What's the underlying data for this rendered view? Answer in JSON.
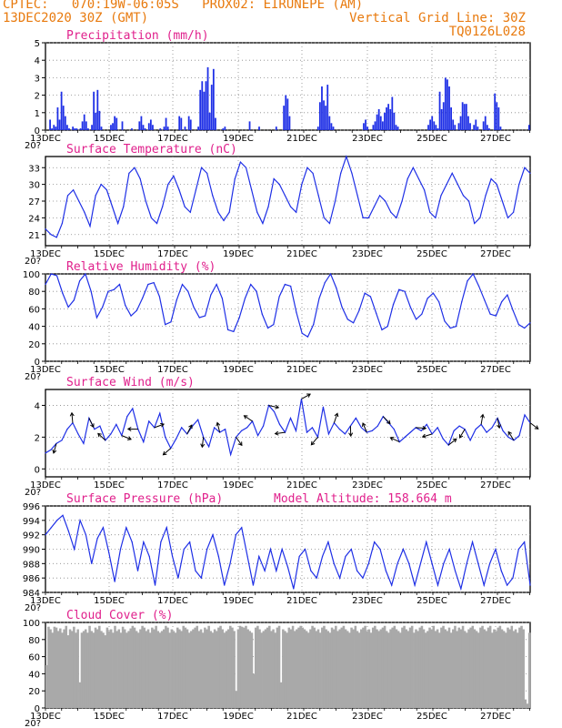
{
  "header": {
    "line1": "CPTEC:   070:19W-06:05S   PROX02: EIRUNEPE (AM)",
    "line2": "13DEC2020 30Z (GMT)",
    "grid_note": "Vertical Grid Line: 30Z",
    "code": "TQ0126L028",
    "extra_label": "Model Altitude: 158.664 m",
    "clip_label": "20?"
  },
  "colors": {
    "title": "#e0208c",
    "header": "#e87a0e",
    "line": "#1e2fe6",
    "bar": "#1e2fe6",
    "cloud": "#a9a9a9",
    "arrow": "#000000"
  },
  "chart_data": [
    {
      "type": "bar",
      "title": "Precipitation (mm/h)",
      "ylim": [
        0,
        5
      ],
      "yticks": [
        0,
        1,
        2,
        3,
        4,
        5
      ],
      "xlabels": [
        "13DEC",
        "15DEC",
        "17DEC",
        "19DEC",
        "21DEC",
        "23DEC",
        "25DEC",
        "27DEC"
      ],
      "values": [
        0,
        0,
        0.6,
        0.1,
        0.3,
        0.2,
        1.3,
        0.6,
        2.2,
        1.4,
        0.8,
        0.3,
        0.1,
        0,
        0.2,
        0.1,
        0.1,
        0,
        0.1,
        0.5,
        0.9,
        0.5,
        0.1,
        0,
        0.3,
        2.2,
        1.0,
        2.3,
        1.1,
        0.2,
        0,
        0,
        0,
        0,
        0.3,
        0.4,
        0.8,
        0.7,
        0,
        0,
        0.5,
        0,
        0,
        0,
        0,
        0.1,
        0,
        0,
        0,
        0.5,
        0.8,
        0.3,
        0.1,
        0,
        0.4,
        0.6,
        0.3,
        0,
        0,
        0,
        0.1,
        0,
        0.2,
        0.7,
        0.2,
        0,
        0,
        0,
        0,
        0,
        0.8,
        0.7,
        0,
        0.2,
        0,
        0.8,
        0.6,
        0,
        0,
        0,
        0.2,
        2.3,
        2.8,
        2.2,
        2.8,
        3.6,
        1.0,
        2.6,
        3.5,
        0.7,
        0,
        0,
        0,
        0.1,
        0.2,
        0,
        0,
        0,
        0,
        0,
        0,
        0,
        0,
        0,
        0,
        0,
        0,
        0.5,
        0,
        0,
        0,
        0,
        0.2,
        0,
        0,
        0,
        0,
        0,
        0,
        0,
        0,
        0.2,
        0,
        0,
        0,
        1.4,
        2.0,
        1.8,
        0.8,
        0,
        0,
        0,
        0,
        0,
        0,
        0,
        0,
        0,
        0,
        0,
        0,
        0,
        0,
        0.2,
        1.6,
        2.5,
        1.7,
        1.4,
        2.6,
        0.8,
        0.4,
        0.2,
        0,
        0,
        0,
        0,
        0,
        0,
        0,
        0,
        0,
        0,
        0,
        0,
        0,
        0,
        0,
        0.4,
        0.6,
        0.2,
        0,
        0,
        0.3,
        0.5,
        0.9,
        1.2,
        0.8,
        0.5,
        1.0,
        1.3,
        1.5,
        1.2,
        1.9,
        1.0,
        0.3,
        0.2,
        0,
        0,
        0,
        0,
        0,
        0,
        0,
        0,
        0,
        0,
        0,
        0,
        0,
        0,
        0,
        0.3,
        0.6,
        0.8,
        0.5,
        0.3,
        0.1,
        2.2,
        1.2,
        1.6,
        3.0,
        2.9,
        2.5,
        1.3,
        0.6,
        0.3,
        0,
        0.4,
        0.8,
        1.6,
        1.5,
        1.5,
        0.8,
        0.4,
        0,
        0.3,
        0.6,
        0.2,
        0,
        0,
        0.5,
        0.8,
        0.3,
        0.1,
        0,
        0,
        2.1,
        1.6,
        1.3,
        0.2,
        0,
        0,
        0,
        0,
        0,
        0,
        0,
        0,
        0,
        0,
        0,
        0,
        0,
        0,
        0.3
      ]
    },
    {
      "type": "line",
      "title": "Surface Temperature (nC)",
      "ylim": [
        19,
        35
      ],
      "yticks": [
        21,
        24,
        27,
        30,
        33
      ],
      "xlabels": [
        "13DEC",
        "15DEC",
        "17DEC",
        "19DEC",
        "21DEC",
        "23DEC",
        "25DEC",
        "27DEC"
      ],
      "values": [
        22,
        21,
        20.5,
        23,
        28,
        29,
        27,
        25,
        22.5,
        28,
        30,
        29,
        26,
        23,
        26,
        32,
        33,
        31,
        27,
        24,
        23,
        26,
        30,
        31.5,
        29,
        26,
        25,
        29,
        33,
        32,
        28,
        25,
        23.5,
        25,
        31,
        34,
        33,
        29,
        25,
        23,
        26,
        31,
        30,
        28,
        26,
        25,
        30,
        33,
        32,
        28,
        24,
        23,
        27,
        32,
        35,
        32,
        28,
        24,
        24,
        26,
        28,
        27,
        25,
        24,
        27,
        31,
        33,
        31,
        29,
        25,
        24,
        28,
        30,
        32,
        30,
        28,
        27,
        23,
        24,
        28,
        31,
        30,
        27,
        24,
        25,
        30,
        33,
        32
      ]
    },
    {
      "type": "line",
      "title": "Relative Humidity (%)",
      "ylim": [
        0,
        100
      ],
      "yticks": [
        0,
        20,
        40,
        60,
        80,
        100
      ],
      "xlabels": [
        "13DEC",
        "15DEC",
        "17DEC",
        "19DEC",
        "21DEC",
        "23DEC",
        "25DEC",
        "27DEC"
      ],
      "values": [
        88,
        100,
        98,
        78,
        62,
        70,
        92,
        100,
        80,
        50,
        62,
        80,
        82,
        88,
        64,
        52,
        58,
        72,
        88,
        90,
        74,
        42,
        45,
        70,
        88,
        80,
        62,
        50,
        52,
        76,
        88,
        72,
        36,
        34,
        50,
        72,
        88,
        80,
        54,
        38,
        42,
        74,
        88,
        86,
        56,
        32,
        28,
        42,
        72,
        90,
        100,
        84,
        62,
        48,
        44,
        58,
        78,
        74,
        55,
        36,
        40,
        65,
        82,
        80,
        62,
        48,
        54,
        72,
        78,
        68,
        46,
        38,
        40,
        68,
        92,
        100,
        86,
        70,
        54,
        52,
        68,
        76,
        58,
        42,
        38,
        44
      ]
    },
    {
      "type": "line",
      "title": "Surface Wind (m/s)",
      "ylim": [
        -0.5,
        5
      ],
      "yticks": [
        0,
        2,
        4
      ],
      "xlabels": [
        "13DEC",
        "15DEC",
        "17DEC",
        "19DEC",
        "21DEC",
        "23DEC",
        "25DEC",
        "27DEC"
      ],
      "values": [
        1.0,
        1.2,
        1.6,
        1.8,
        2.5,
        2.9,
        2.2,
        1.6,
        3.2,
        2.5,
        2.7,
        1.8,
        2.2,
        2.8,
        2.1,
        3.3,
        3.8,
        2.5,
        1.7,
        3.0,
        2.6,
        3.5,
        2.0,
        1.3,
        1.9,
        2.6,
        2.2,
        2.7,
        3.1,
        2.0,
        1.4,
        2.6,
        2.3,
        2.5,
        0.9,
        2.0,
        2.4,
        2.6,
        3.0,
        2.1,
        2.7,
        4.0,
        3.6,
        2.8,
        2.3,
        3.2,
        2.4,
        4.4,
        2.3,
        2.6,
        2.0,
        3.9,
        2.2,
        2.9,
        2.5,
        2.2,
        2.7,
        3.2,
        2.6,
        2.3,
        2.4,
        2.7,
        3.3,
        2.9,
        2.5,
        1.7,
        2.0,
        2.3,
        2.6,
        2.4,
        2.8,
        2.2,
        2.6,
        1.9,
        1.5,
        2.4,
        2.7,
        2.5,
        1.8,
        2.5,
        2.8,
        2.3,
        2.6,
        3.2,
        2.4,
        2.0,
        1.8,
        2.1,
        3.4,
        2.9
      ]
    },
    {
      "type": "line",
      "title": "Surface Pressure (hPa)",
      "ylim": [
        984,
        996
      ],
      "yticks": [
        984,
        986,
        988,
        990,
        992,
        994,
        996
      ],
      "xlabels": [
        "13DEC",
        "15DEC",
        "17DEC",
        "19DEC",
        "21DEC",
        "23DEC",
        "25DEC",
        "27DEC"
      ],
      "values": [
        992,
        993,
        994,
        994.7,
        992.5,
        990,
        994,
        992,
        988,
        991.5,
        993,
        989.5,
        985.5,
        990,
        993,
        991,
        987,
        991,
        989,
        985,
        991,
        993,
        989,
        986,
        990,
        991,
        987,
        986,
        990,
        992,
        989,
        985,
        988,
        992,
        993,
        989,
        985,
        989,
        987,
        990,
        987,
        990,
        987.5,
        984.5,
        989,
        990,
        987,
        986,
        989,
        991,
        988,
        986,
        989,
        990,
        987,
        986,
        988,
        991,
        990,
        987,
        985,
        988,
        990,
        988,
        985,
        988,
        991,
        988,
        985,
        988,
        990,
        987,
        984.5,
        988,
        991,
        988,
        985,
        988,
        990,
        987,
        985,
        986,
        990,
        991,
        985
      ]
    },
    {
      "type": "bar",
      "title": "Cloud Cover (%)",
      "ylim": [
        0,
        100
      ],
      "yticks": [
        0,
        20,
        40,
        60,
        80,
        100
      ],
      "xlabels": [
        "13DEC",
        "15DEC",
        "17DEC",
        "19DEC",
        "21DEC",
        "23DEC",
        "25DEC",
        "27DEC"
      ],
      "values": [
        50,
        95,
        92,
        88,
        95,
        94,
        90,
        93,
        88,
        92,
        96,
        85,
        92,
        90,
        95,
        88,
        92,
        30,
        88,
        90,
        92,
        88,
        96,
        90,
        88,
        94,
        92,
        96,
        90,
        88,
        85,
        94,
        90,
        92,
        88,
        96,
        90,
        92,
        88,
        95,
        92,
        88,
        90,
        93,
        96,
        94,
        90,
        88,
        92,
        96,
        94,
        90,
        92,
        88,
        94,
        92,
        96,
        90,
        88,
        90,
        92,
        96,
        94,
        88,
        92,
        90,
        88,
        94,
        92,
        90,
        96,
        94,
        92,
        88,
        90,
        92,
        94,
        96,
        90,
        92,
        88,
        94,
        92,
        96,
        90,
        88,
        92,
        90,
        94,
        96,
        92,
        88,
        90,
        92,
        96,
        94,
        90,
        20,
        92,
        96,
        95,
        94,
        96,
        92,
        90,
        88,
        40,
        94,
        96,
        92,
        88,
        90,
        92,
        94,
        96,
        90,
        92,
        88,
        94,
        96,
        30,
        92,
        90,
        88,
        94,
        92,
        96,
        90,
        92,
        94,
        96,
        94,
        92,
        90,
        88,
        92,
        96,
        94,
        90,
        92,
        88,
        94,
        96,
        92,
        90,
        88,
        94,
        92,
        96,
        90,
        92,
        94,
        96,
        92,
        90,
        88,
        94,
        92,
        96,
        90,
        88,
        92,
        94,
        96,
        90,
        92,
        88,
        94,
        96,
        92,
        90,
        92,
        94,
        96,
        90,
        88,
        92,
        94,
        96,
        92,
        90,
        88,
        94,
        96,
        92,
        90,
        94,
        96,
        88,
        92,
        90,
        94,
        96,
        92,
        88,
        90,
        94,
        92,
        96,
        90,
        92,
        88,
        94,
        96,
        92,
        90,
        94,
        88,
        92,
        96,
        90,
        94,
        92,
        96,
        90,
        88,
        92,
        94,
        96,
        92,
        90,
        88,
        94,
        96,
        92,
        90,
        94,
        96,
        88,
        92,
        90,
        94,
        96,
        92,
        90,
        88,
        94,
        92,
        96,
        90,
        92,
        88,
        94,
        96,
        92,
        10,
        5,
        88
      ]
    }
  ]
}
